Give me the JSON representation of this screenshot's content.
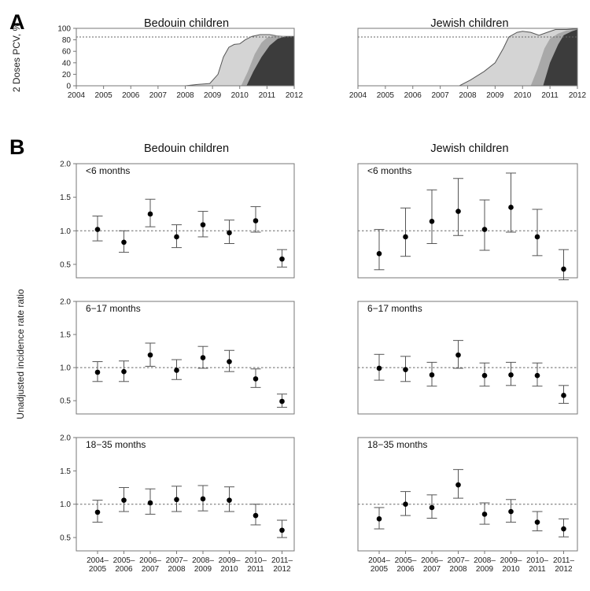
{
  "panels": {
    "a": "A",
    "b": "B"
  },
  "colors": {
    "dose1": "#d4d4d4",
    "dose2": "#a9a9a9",
    "dose3": "#3c3c3c",
    "line": "#555555",
    "ref": "#666666",
    "point": "#000000",
    "frame": "#777777"
  },
  "chart_data": [
    {
      "id": "A",
      "type": "area",
      "ylabel": "2 Doses PCV, %",
      "ylim": [
        0,
        100
      ],
      "yticks": [
        0,
        20,
        40,
        60,
        80,
        100
      ],
      "xticks": [
        "2004",
        "2005",
        "2006",
        "2007",
        "2008",
        "2009",
        "2010",
        "2011",
        "2012"
      ],
      "xlim": [
        2004,
        2012
      ],
      "reference_line": 85,
      "subplots": [
        {
          "title": "Bedouin children",
          "series": [
            {
              "name": "outer",
              "points": [
                [
                  2004,
                  0
                ],
                [
                  2008.0,
                  0
                ],
                [
                  2008.4,
                  2
                ],
                [
                  2008.9,
                  4
                ],
                [
                  2009.2,
                  20
                ],
                [
                  2009.4,
                  50
                ],
                [
                  2009.6,
                  67
                ],
                [
                  2009.8,
                  72
                ],
                [
                  2010.0,
                  73
                ],
                [
                  2010.2,
                  80
                ],
                [
                  2010.45,
                  86
                ],
                [
                  2010.75,
                  89
                ],
                [
                  2011.1,
                  89
                ],
                [
                  2011.35,
                  87
                ],
                [
                  2011.7,
                  86
                ],
                [
                  2012,
                  86
                ]
              ]
            },
            {
              "name": "middle",
              "points": [
                [
                  2004,
                  0
                ],
                [
                  2010.05,
                  0
                ],
                [
                  2010.3,
                  25
                ],
                [
                  2010.55,
                  55
                ],
                [
                  2010.8,
                  75
                ],
                [
                  2011.0,
                  84
                ],
                [
                  2011.3,
                  87
                ],
                [
                  2011.6,
                  87
                ],
                [
                  2012,
                  86
                ]
              ]
            },
            {
              "name": "inner",
              "points": [
                [
                  2004,
                  0
                ],
                [
                  2010.25,
                  0
                ],
                [
                  2010.5,
                  25
                ],
                [
                  2010.8,
                  50
                ],
                [
                  2011.1,
                  70
                ],
                [
                  2011.4,
                  82
                ],
                [
                  2011.7,
                  86
                ],
                [
                  2012,
                  86
                ]
              ]
            }
          ]
        },
        {
          "title": "Jewish children",
          "series": [
            {
              "name": "outer",
              "points": [
                [
                  2004,
                  0
                ],
                [
                  2007.7,
                  0
                ],
                [
                  2008.1,
                  10
                ],
                [
                  2008.6,
                  25
                ],
                [
                  2009.0,
                  40
                ],
                [
                  2009.3,
                  65
                ],
                [
                  2009.5,
                  85
                ],
                [
                  2009.8,
                  93
                ],
                [
                  2010.0,
                  95
                ],
                [
                  2010.3,
                  93
                ],
                [
                  2010.6,
                  88
                ],
                [
                  2010.9,
                  93
                ],
                [
                  2011.2,
                  98
                ],
                [
                  2011.6,
                  98
                ],
                [
                  2012,
                  99
                ]
              ]
            },
            {
              "name": "middle",
              "points": [
                [
                  2004,
                  0
                ],
                [
                  2010.3,
                  0
                ],
                [
                  2010.55,
                  30
                ],
                [
                  2010.8,
                  65
                ],
                [
                  2011.0,
                  82
                ],
                [
                  2011.3,
                  91
                ],
                [
                  2011.6,
                  96
                ],
                [
                  2012,
                  98
                ]
              ]
            },
            {
              "name": "inner",
              "points": [
                [
                  2004,
                  0
                ],
                [
                  2010.75,
                  0
                ],
                [
                  2011.0,
                  40
                ],
                [
                  2011.3,
                  72
                ],
                [
                  2011.5,
                  88
                ],
                [
                  2011.8,
                  95
                ],
                [
                  2012,
                  98
                ]
              ]
            }
          ]
        }
      ]
    },
    {
      "id": "B",
      "type": "scatter",
      "ylabel": "Unadjusted incidence rate ratio",
      "ylim": [
        0.3,
        2.0
      ],
      "yticks": [
        "0.5",
        "1.0",
        "1.5",
        "2.0"
      ],
      "reference_line": 1.0,
      "xticks": [
        [
          "2004–",
          "2005"
        ],
        [
          "2005–",
          "2006"
        ],
        [
          "2006–",
          "2007"
        ],
        [
          "2007–",
          "2008"
        ],
        [
          "2008–",
          "2009"
        ],
        [
          "2009–",
          "2010"
        ],
        [
          "2010–",
          "2011"
        ],
        [
          "2011–",
          "2012"
        ]
      ],
      "columns": [
        "Bedouin children",
        "Jewish children"
      ],
      "rows": [
        {
          "age_group": "<6 months",
          "bedouin": {
            "est": [
              1.02,
              0.83,
              1.25,
              0.91,
              1.09,
              0.97,
              1.15,
              0.58
            ],
            "lo": [
              0.85,
              0.68,
              1.06,
              0.75,
              0.91,
              0.81,
              0.98,
              0.46
            ],
            "hi": [
              1.22,
              1.0,
              1.47,
              1.09,
              1.29,
              1.16,
              1.36,
              0.72
            ]
          },
          "jewish": {
            "est": [
              0.66,
              0.91,
              1.14,
              1.29,
              1.02,
              1.35,
              0.91,
              0.43
            ],
            "lo": [
              0.42,
              0.62,
              0.81,
              0.93,
              0.71,
              0.98,
              0.63,
              0.27
            ],
            "hi": [
              1.02,
              1.34,
              1.61,
              1.78,
              1.46,
              1.86,
              1.32,
              0.72
            ]
          }
        },
        {
          "age_group": "6−17 months",
          "bedouin": {
            "est": [
              0.93,
              0.94,
              1.19,
              0.96,
              1.15,
              1.09,
              0.83,
              0.49
            ],
            "lo": [
              0.79,
              0.79,
              1.02,
              0.82,
              0.99,
              0.94,
              0.7,
              0.4
            ],
            "hi": [
              1.09,
              1.1,
              1.37,
              1.12,
              1.32,
              1.26,
              0.98,
              0.6
            ]
          },
          "jewish": {
            "est": [
              0.99,
              0.97,
              0.89,
              1.19,
              0.88,
              0.89,
              0.88,
              0.58
            ],
            "lo": [
              0.81,
              0.79,
              0.72,
              0.99,
              0.72,
              0.73,
              0.72,
              0.46
            ],
            "hi": [
              1.2,
              1.17,
              1.08,
              1.41,
              1.07,
              1.08,
              1.07,
              0.73
            ]
          }
        },
        {
          "age_group": "18−35 months",
          "bedouin": {
            "est": [
              0.88,
              1.06,
              1.02,
              1.07,
              1.08,
              1.06,
              0.83,
              0.61
            ],
            "lo": [
              0.73,
              0.89,
              0.85,
              0.89,
              0.9,
              0.89,
              0.69,
              0.5
            ],
            "hi": [
              1.06,
              1.25,
              1.23,
              1.27,
              1.28,
              1.26,
              1.0,
              0.76
            ]
          },
          "jewish": {
            "est": [
              0.78,
              1.0,
              0.95,
              1.29,
              0.85,
              0.89,
              0.73,
              0.63
            ],
            "lo": [
              0.63,
              0.83,
              0.79,
              1.09,
              0.7,
              0.73,
              0.6,
              0.51
            ],
            "hi": [
              0.95,
              1.19,
              1.14,
              1.52,
              1.02,
              1.07,
              0.89,
              0.78
            ]
          }
        }
      ]
    }
  ]
}
